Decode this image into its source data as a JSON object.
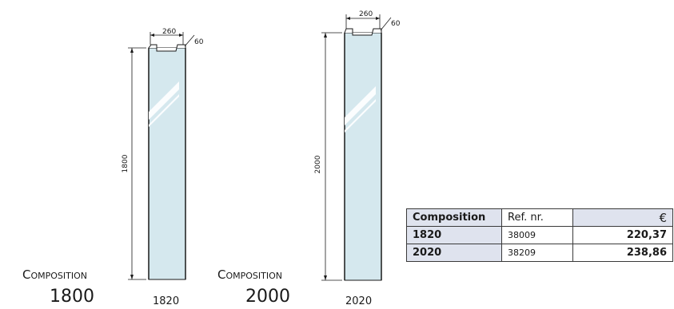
{
  "panels": [
    {
      "width_label": "260",
      "depth_label": "60",
      "height_label": "1800",
      "label_top": "Composition",
      "label_bottom": "1800",
      "model_label": "1820"
    },
    {
      "width_label": "260",
      "depth_label": "60",
      "height_label": "2000",
      "label_top": "Composition",
      "label_bottom": "2000",
      "model_label": "2020"
    }
  ],
  "table": {
    "headers": [
      "Composition",
      "Ref. nr.",
      "€"
    ],
    "rows": [
      [
        "1820",
        "38009",
        "220,37"
      ],
      [
        "2020",
        "38209",
        "238,86"
      ]
    ]
  },
  "colors": {
    "glass": "#d5e8ee",
    "table_shade": "#dfe3ee",
    "line": "#1a1a1a"
  }
}
